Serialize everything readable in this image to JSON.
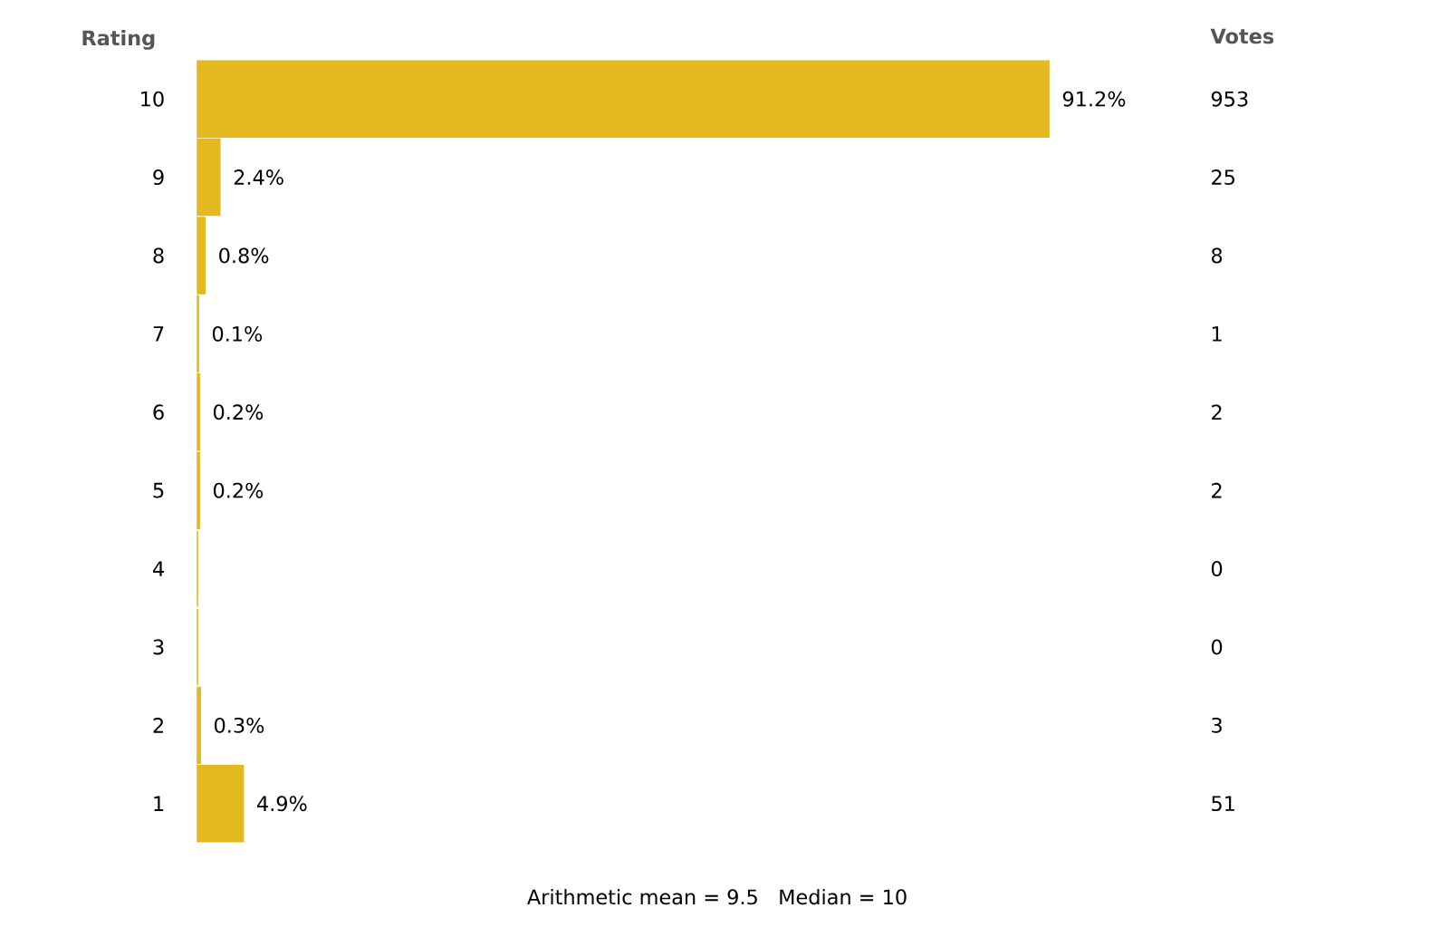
{
  "chart_data": {
    "type": "bar",
    "orientation": "horizontal",
    "ylabel": "Rating",
    "categories": [
      "10",
      "9",
      "8",
      "7",
      "6",
      "5",
      "4",
      "3",
      "2",
      "1"
    ],
    "values": [
      91.2,
      2.4,
      0.8,
      0.1,
      0.2,
      0.2,
      0,
      0,
      0.3,
      4.9
    ],
    "value_labels": [
      "91.2%",
      "2.4%",
      "0.8%",
      "0.1%",
      "0.2%",
      "0.2%",
      null,
      null,
      "0.3%",
      "4.9%"
    ],
    "color": "#e4b820",
    "annotations": [
      "Votes",
      "953",
      "25",
      "8",
      "1",
      "2",
      "2",
      "0",
      "0",
      "3",
      "51",
      "Arithmetic mean = 9.5   Median = 10"
    ]
  }
}
